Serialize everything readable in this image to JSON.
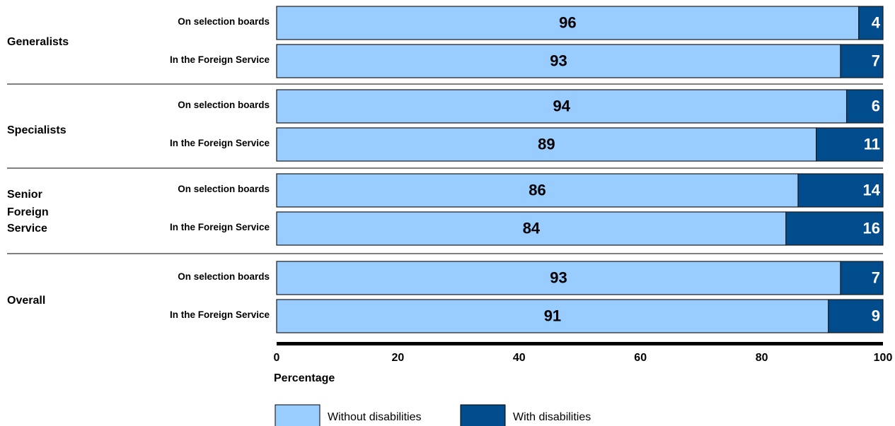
{
  "chart_data": {
    "type": "bar",
    "orientation": "horizontal",
    "stacked": true,
    "xlabel": "Percentage",
    "xlim": [
      0,
      100
    ],
    "xticks": [
      0,
      20,
      40,
      60,
      80,
      100
    ],
    "grid": false,
    "legend_position": "bottom",
    "series": [
      {
        "name": "Without disabilities",
        "color": "#99ccff"
      },
      {
        "name": "With disabilities",
        "color": "#004c8c"
      }
    ],
    "groups": [
      {
        "label": "Generalists",
        "bars": [
          {
            "label": "On selection boards",
            "values": [
              96,
              4
            ]
          },
          {
            "label": "In the Foreign Service",
            "values": [
              93,
              7
            ]
          }
        ]
      },
      {
        "label": "Specialists",
        "bars": [
          {
            "label": "On selection boards",
            "values": [
              94,
              6
            ]
          },
          {
            "label": "In the Foreign Service",
            "values": [
              89,
              11
            ]
          }
        ]
      },
      {
        "label": "Senior Foreign Service",
        "bars": [
          {
            "label": "On selection boards",
            "values": [
              86,
              14
            ]
          },
          {
            "label": "In the Foreign Service",
            "values": [
              84,
              16
            ]
          }
        ]
      },
      {
        "label": "Overall",
        "bars": [
          {
            "label": "On selection boards",
            "values": [
              93,
              7
            ]
          },
          {
            "label": "In the Foreign Service",
            "values": [
              91,
              9
            ]
          }
        ]
      }
    ]
  }
}
